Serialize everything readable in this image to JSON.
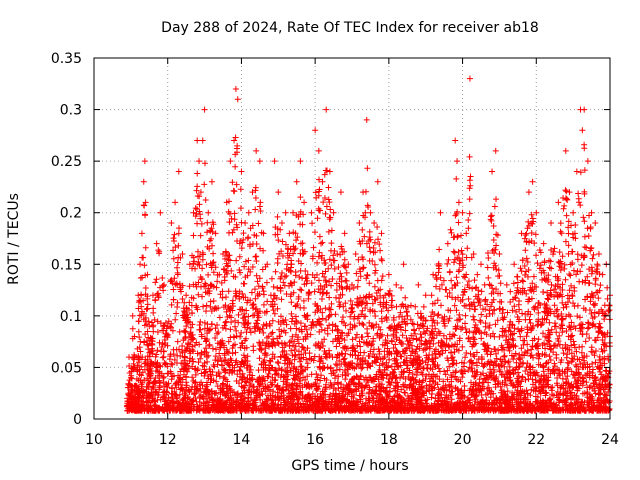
{
  "chart_data": {
    "type": "scatter",
    "title": "Day 288 of 2024, Rate Of TEC Index for receiver ab18",
    "xlabel": "GPS time / hours",
    "ylabel": "ROTI / TECUs",
    "xlim": [
      10,
      24
    ],
    "ylim": [
      0,
      0.35
    ],
    "xticks": [
      10,
      12,
      14,
      16,
      18,
      20,
      22,
      24
    ],
    "yticks": [
      0,
      0.05,
      0.1,
      0.15,
      0.2,
      0.25,
      0.3,
      0.35
    ],
    "xtick_labels": [
      "10",
      "12",
      "14",
      "16",
      "18",
      "20",
      "22",
      "24"
    ],
    "ytick_labels": [
      "0",
      "0.05",
      "0.1",
      "0.15",
      "0.2",
      "0.25",
      "0.3",
      "0.35"
    ],
    "grid": true,
    "marker": "+",
    "color": "#ff0000",
    "series": [
      {
        "name": "ROTI",
        "points": [
          [
            10.9,
            0.02
          ],
          [
            10.95,
            0.06
          ],
          [
            11.0,
            0.04
          ],
          [
            11.05,
            0.1
          ],
          [
            11.1,
            0.08
          ],
          [
            11.15,
            0.03
          ],
          [
            11.2,
            0.12
          ],
          [
            11.25,
            0.15
          ],
          [
            11.3,
            0.18
          ],
          [
            11.35,
            0.23
          ],
          [
            11.38,
            0.25
          ],
          [
            11.4,
            0.21
          ],
          [
            11.45,
            0.14
          ],
          [
            11.5,
            0.09
          ],
          [
            11.6,
            0.12
          ],
          [
            11.7,
            0.17
          ],
          [
            11.8,
            0.2
          ],
          [
            11.9,
            0.13
          ],
          [
            12.0,
            0.09
          ],
          [
            12.1,
            0.19
          ],
          [
            12.2,
            0.21
          ],
          [
            12.3,
            0.24
          ],
          [
            12.4,
            0.16
          ],
          [
            12.5,
            0.12
          ],
          [
            12.6,
            0.15
          ],
          [
            12.7,
            0.2
          ],
          [
            12.8,
            0.27
          ],
          [
            12.85,
            0.25
          ],
          [
            12.9,
            0.22
          ],
          [
            12.95,
            0.27
          ],
          [
            13.0,
            0.3
          ],
          [
            13.1,
            0.2
          ],
          [
            13.2,
            0.23
          ],
          [
            13.3,
            0.18
          ],
          [
            13.4,
            0.14
          ],
          [
            13.5,
            0.16
          ],
          [
            13.6,
            0.21
          ],
          [
            13.7,
            0.25
          ],
          [
            13.8,
            0.27
          ],
          [
            13.85,
            0.32
          ],
          [
            13.9,
            0.31
          ],
          [
            14.0,
            0.24
          ],
          [
            14.1,
            0.19
          ],
          [
            14.2,
            0.2
          ],
          [
            14.3,
            0.22
          ],
          [
            14.4,
            0.26
          ],
          [
            14.5,
            0.25
          ],
          [
            14.6,
            0.18
          ],
          [
            14.7,
            0.15
          ],
          [
            14.8,
            0.12
          ],
          [
            14.9,
            0.25
          ],
          [
            15.0,
            0.22
          ],
          [
            15.1,
            0.19
          ],
          [
            15.2,
            0.2
          ],
          [
            15.3,
            0.18
          ],
          [
            15.4,
            0.2
          ],
          [
            15.5,
            0.23
          ],
          [
            15.6,
            0.25
          ],
          [
            15.7,
            0.21
          ],
          [
            15.8,
            0.14
          ],
          [
            15.9,
            0.2
          ],
          [
            16.0,
            0.28
          ],
          [
            16.1,
            0.26
          ],
          [
            16.2,
            0.23
          ],
          [
            16.3,
            0.3
          ],
          [
            16.4,
            0.24
          ],
          [
            16.5,
            0.2
          ],
          [
            16.6,
            0.16
          ],
          [
            16.7,
            0.22
          ],
          [
            16.8,
            0.18
          ],
          [
            16.9,
            0.15
          ],
          [
            17.0,
            0.13
          ],
          [
            17.1,
            0.16
          ],
          [
            17.2,
            0.19
          ],
          [
            17.3,
            0.22
          ],
          [
            17.4,
            0.29
          ],
          [
            17.5,
            0.2
          ],
          [
            17.6,
            0.19
          ],
          [
            17.7,
            0.23
          ],
          [
            17.8,
            0.18
          ],
          [
            17.9,
            0.12
          ],
          [
            18.0,
            0.14
          ],
          [
            18.2,
            0.13
          ],
          [
            18.4,
            0.15
          ],
          [
            18.6,
            0.11
          ],
          [
            18.8,
            0.13
          ],
          [
            19.0,
            0.12
          ],
          [
            19.2,
            0.14
          ],
          [
            19.4,
            0.2
          ],
          [
            19.6,
            0.17
          ],
          [
            19.8,
            0.27
          ],
          [
            19.85,
            0.25
          ],
          [
            19.9,
            0.21
          ],
          [
            20.0,
            0.2
          ],
          [
            20.1,
            0.18
          ],
          [
            20.2,
            0.33
          ],
          [
            20.3,
            0.16
          ],
          [
            20.4,
            0.14
          ],
          [
            20.5,
            0.15
          ],
          [
            20.6,
            0.13
          ],
          [
            20.8,
            0.24
          ],
          [
            20.9,
            0.26
          ],
          [
            21.0,
            0.16
          ],
          [
            21.2,
            0.13
          ],
          [
            21.4,
            0.15
          ],
          [
            21.6,
            0.18
          ],
          [
            21.8,
            0.22
          ],
          [
            21.9,
            0.23
          ],
          [
            22.0,
            0.2
          ],
          [
            22.2,
            0.17
          ],
          [
            22.4,
            0.19
          ],
          [
            22.6,
            0.21
          ],
          [
            22.8,
            0.26
          ],
          [
            22.9,
            0.22
          ],
          [
            23.0,
            0.2
          ],
          [
            23.1,
            0.24
          ],
          [
            23.2,
            0.3
          ],
          [
            23.25,
            0.28
          ],
          [
            23.3,
            0.3
          ],
          [
            23.4,
            0.25
          ],
          [
            23.5,
            0.2
          ],
          [
            23.6,
            0.19
          ],
          [
            23.7,
            0.16
          ],
          [
            23.8,
            0.14
          ],
          [
            23.9,
            0.15
          ],
          [
            24.0,
            0.12
          ]
        ]
      }
    ]
  }
}
